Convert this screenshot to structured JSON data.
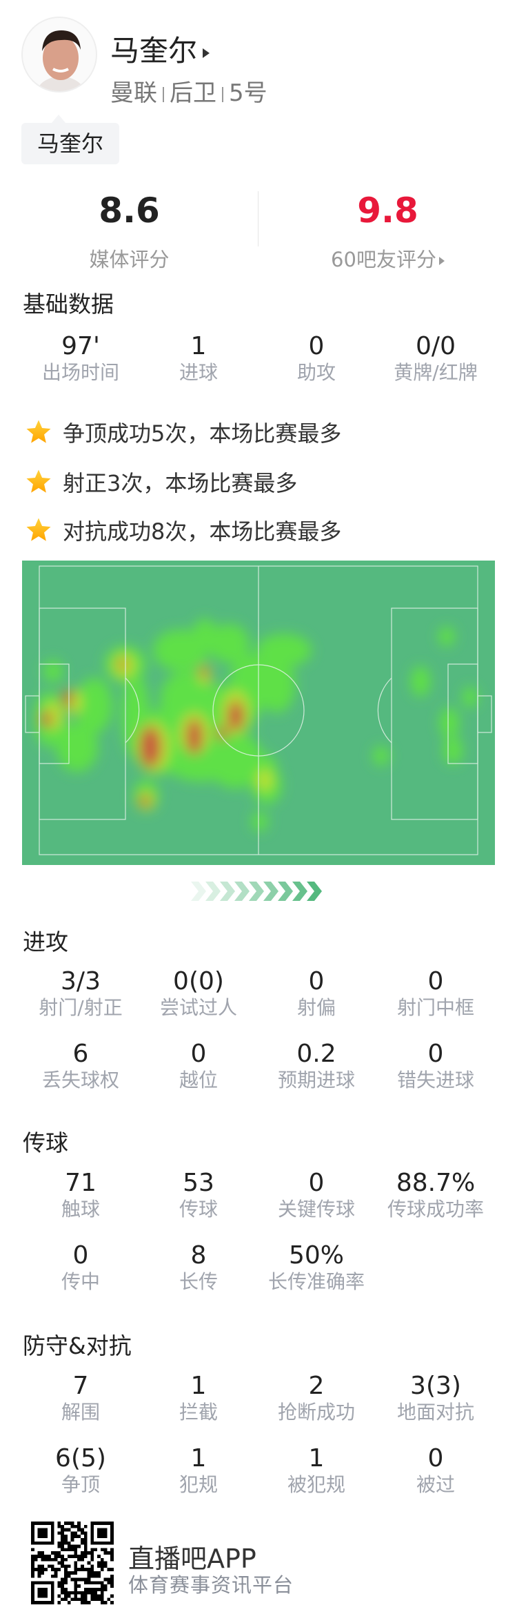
{
  "player": {
    "name": "马奎尔",
    "team": "曼联",
    "position": "后卫",
    "number": "5号",
    "tag": "马奎尔",
    "avatar_icon": "player-photo"
  },
  "ratings": {
    "media": {
      "value": "8.6",
      "label": "媒体评分",
      "color": "#222222"
    },
    "fans": {
      "value": "9.8",
      "label": "60吧友评分",
      "color": "#e8183a"
    }
  },
  "basic": {
    "title": "基础数据",
    "stats": [
      {
        "v": "97'",
        "l": "出场时间"
      },
      {
        "v": "1",
        "l": "进球"
      },
      {
        "v": "0",
        "l": "助攻"
      },
      {
        "v": "0/0",
        "l": "黄牌/红牌"
      }
    ]
  },
  "highlights": [
    "争顶成功5次，本场比赛最多",
    "射正3次，本场比赛最多",
    "对抗成功8次，本场比赛最多"
  ],
  "heatmap": {
    "pitch_color": "#55b97f"
  },
  "attack": {
    "title": "进攻",
    "stats": [
      {
        "v": "3/3",
        "l": "射门/射正"
      },
      {
        "v": "0(0)",
        "l": "尝试过人"
      },
      {
        "v": "0",
        "l": "射偏"
      },
      {
        "v": "0",
        "l": "射门中框"
      },
      {
        "v": "6",
        "l": "丢失球权"
      },
      {
        "v": "0",
        "l": "越位"
      },
      {
        "v": "0.2",
        "l": "预期进球"
      },
      {
        "v": "0",
        "l": "错失进球"
      }
    ]
  },
  "passing": {
    "title": "传球",
    "stats": [
      {
        "v": "71",
        "l": "触球"
      },
      {
        "v": "53",
        "l": "传球"
      },
      {
        "v": "0",
        "l": "关键传球"
      },
      {
        "v": "88.7%",
        "l": "传球成功率"
      },
      {
        "v": "0",
        "l": "传中"
      },
      {
        "v": "8",
        "l": "长传"
      },
      {
        "v": "50%",
        "l": "长传准确率"
      }
    ]
  },
  "defense": {
    "title": "防守&对抗",
    "stats": [
      {
        "v": "7",
        "l": "解围"
      },
      {
        "v": "1",
        "l": "拦截"
      },
      {
        "v": "2",
        "l": "抢断成功"
      },
      {
        "v": "3(3)",
        "l": "地面对抗"
      },
      {
        "v": "6(5)",
        "l": "争顶"
      },
      {
        "v": "1",
        "l": "犯规"
      },
      {
        "v": "1",
        "l": "被犯规"
      },
      {
        "v": "0",
        "l": "被过"
      }
    ]
  },
  "footer": {
    "app": "直播吧APP",
    "slogan": "体育赛事资讯平台"
  }
}
